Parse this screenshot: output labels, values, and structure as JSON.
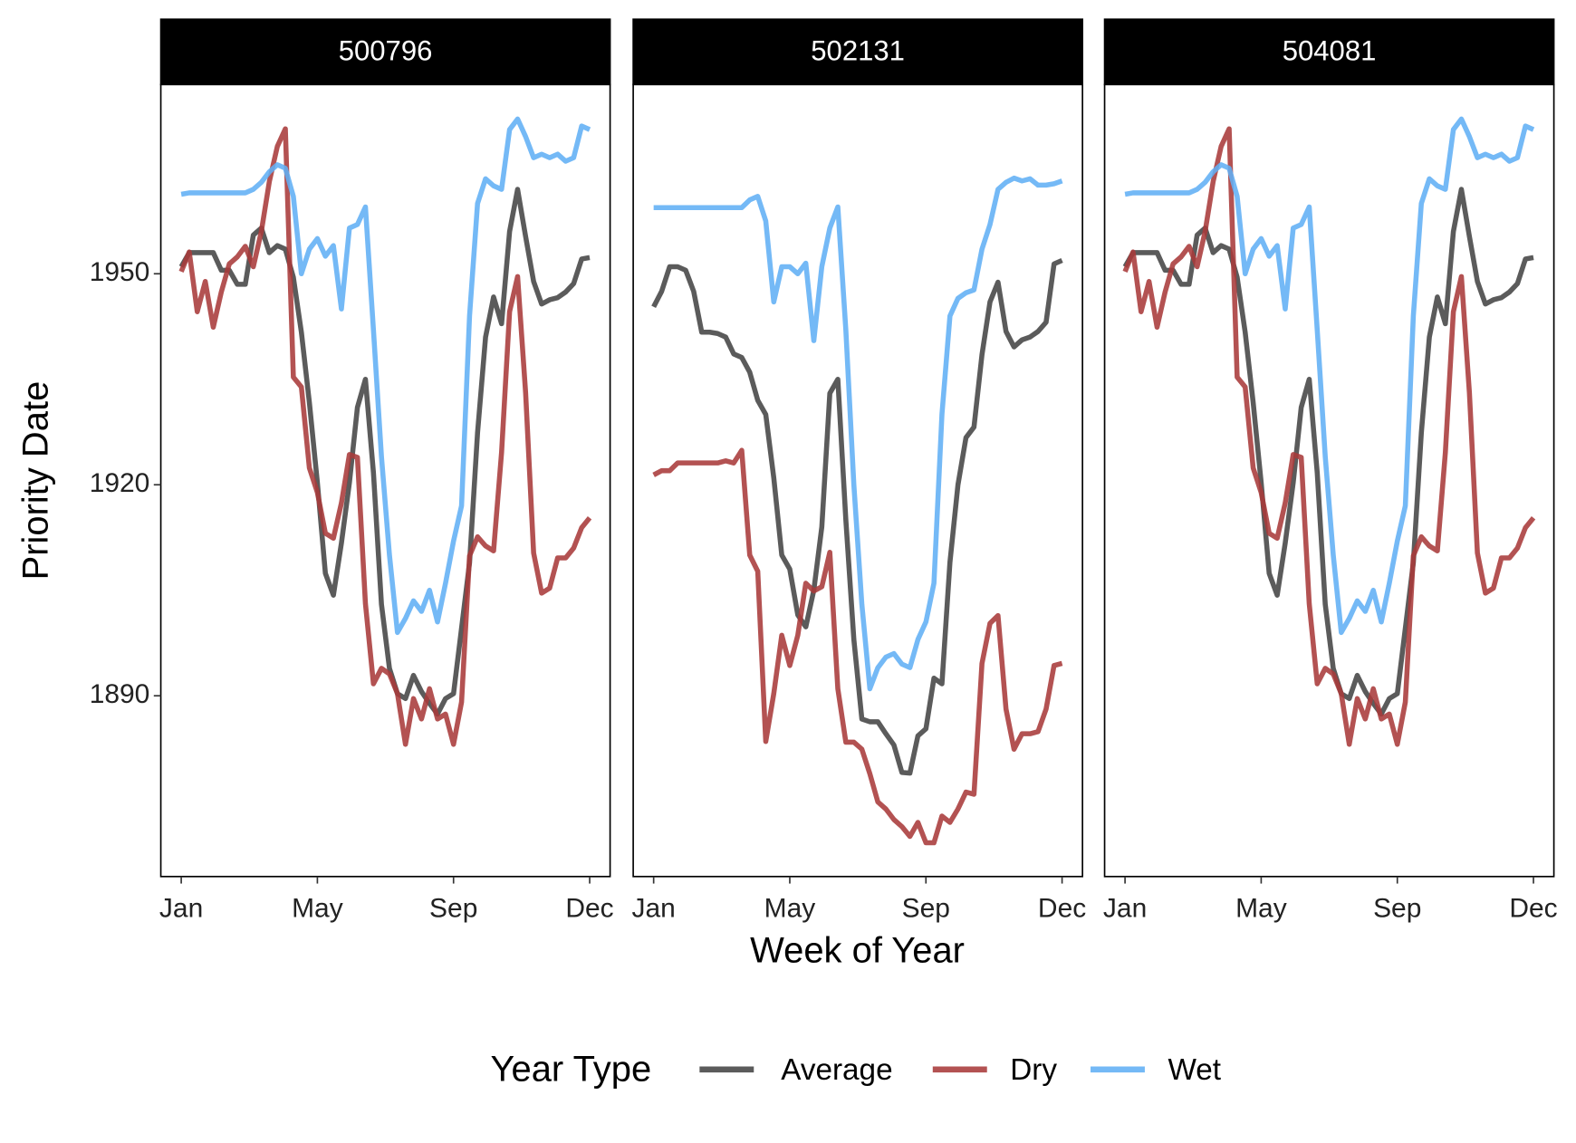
{
  "chart_data": [
    {
      "type": "line",
      "title": "500796",
      "x": [
        1,
        2,
        3,
        4,
        5,
        6,
        7,
        8,
        9,
        10,
        11,
        12,
        13,
        14,
        15,
        16,
        17,
        18,
        19,
        20,
        21,
        22,
        23,
        24,
        25,
        26,
        27,
        28,
        29,
        30,
        31,
        32,
        33,
        34,
        35,
        36,
        37,
        38,
        39,
        40,
        41,
        42,
        43,
        44,
        45,
        46,
        47,
        48,
        49,
        50,
        51,
        52
      ],
      "series": [
        {
          "name": "Average",
          "color": "#444444",
          "values": [
            1951,
            1953,
            1953,
            1953,
            1953,
            1950.5,
            1950.5,
            1948.5,
            1948.5,
            1955.5,
            1956.5,
            1953,
            1954,
            1953.5,
            1949.5,
            1941.7,
            1931.7,
            1920.3,
            1907.4,
            1904.3,
            1911.7,
            1920.3,
            1931,
            1935,
            1921.7,
            1903,
            1893.9,
            1890.3,
            1889.6,
            1892.9,
            1890.6,
            1888.9,
            1887.4,
            1889.6,
            1890.3,
            1899.6,
            1908.9,
            1927.4,
            1941,
            1946.7,
            1942.9,
            1956,
            1962,
            1955.3,
            1948.9,
            1945.7,
            1946.3,
            1946.6,
            1947.4,
            1948.6,
            1952.1,
            1952.3
          ]
        },
        {
          "name": "Dry",
          "color": "#a83a3a",
          "values": [
            1950.3,
            1953.1,
            1944.6,
            1948.9,
            1942.4,
            1947.4,
            1951.4,
            1952.4,
            1953.9,
            1951,
            1956,
            1963.1,
            1968.1,
            1970.6,
            1935.3,
            1933.9,
            1922.4,
            1918.9,
            1913.1,
            1912.4,
            1917.4,
            1924.3,
            1923.9,
            1903.1,
            1891.7,
            1893.9,
            1893.1,
            1890.3,
            1883.1,
            1889.6,
            1886.7,
            1891,
            1886.7,
            1887.4,
            1883.1,
            1889.1,
            1909.9,
            1912.6,
            1911.3,
            1910.6,
            1924.6,
            1944.6,
            1949.6,
            1933.1,
            1910.3,
            1904.6,
            1905.3,
            1909.6,
            1909.6,
            1911,
            1913.9,
            1915.3
          ]
        },
        {
          "name": "Wet",
          "color": "#61aff5",
          "values": [
            1961.3,
            1961.5,
            1961.5,
            1961.5,
            1961.5,
            1961.5,
            1961.5,
            1961.5,
            1961.5,
            1962,
            1963,
            1964.5,
            1965.5,
            1965,
            1961,
            1950,
            1953.5,
            1955,
            1952.5,
            1954,
            1945,
            1956.5,
            1957,
            1959.5,
            1942,
            1924,
            1910,
            1899,
            1901,
            1903.5,
            1902,
            1905,
            1900.5,
            1906,
            1912,
            1917,
            1944,
            1960,
            1963.5,
            1962.5,
            1962,
            1970.5,
            1972,
            1969.5,
            1966.5,
            1967,
            1966.5,
            1967,
            1966,
            1966.5,
            1971,
            1970.5
          ]
        }
      ],
      "xlim": [
        -1.55,
        54.55
      ],
      "ylim": [
        1864.3,
        1976.9
      ],
      "xticks": [
        {
          "value": 1,
          "label": "Jan"
        },
        {
          "value": 18,
          "label": "May"
        },
        {
          "value": 35,
          "label": "Sep"
        },
        {
          "value": 52,
          "label": "Dec"
        }
      ],
      "yticks": [
        1890,
        1920,
        1950
      ],
      "grid": false
    },
    {
      "type": "line",
      "title": "502131",
      "x": [
        1,
        2,
        3,
        4,
        5,
        6,
        7,
        8,
        9,
        10,
        11,
        12,
        13,
        14,
        15,
        16,
        17,
        18,
        19,
        20,
        21,
        22,
        23,
        24,
        25,
        26,
        27,
        28,
        29,
        30,
        31,
        32,
        33,
        34,
        35,
        36,
        37,
        38,
        39,
        40,
        41,
        42,
        43,
        44,
        45,
        46,
        47,
        48,
        49,
        50,
        51,
        52
      ],
      "series": [
        {
          "name": "Average",
          "color": "#444444",
          "values": [
            1945.3,
            1947.5,
            1951,
            1951,
            1950.5,
            1947.5,
            1941.7,
            1941.7,
            1941.5,
            1941,
            1938.6,
            1938.1,
            1936,
            1932,
            1930,
            1921,
            1910,
            1908,
            1901.5,
            1899.8,
            1905,
            1914,
            1933,
            1935,
            1915,
            1898,
            1886.7,
            1886.3,
            1886.3,
            1884.6,
            1883,
            1879.1,
            1879,
            1884.3,
            1885.3,
            1892.5,
            1891.7,
            1909,
            1920,
            1926.7,
            1928.2,
            1938.5,
            1946,
            1948.8,
            1941.8,
            1939.6,
            1940.6,
            1941,
            1941.8,
            1943.1,
            1951.4,
            1951.9
          ]
        },
        {
          "name": "Dry",
          "color": "#a83a3a",
          "values": [
            1921.4,
            1922,
            1922,
            1923.1,
            1923.1,
            1923.1,
            1923.1,
            1923.1,
            1923.1,
            1923.4,
            1923.1,
            1924.9,
            1910,
            1907.7,
            1883.5,
            1890.3,
            1898.6,
            1894.3,
            1898.6,
            1906,
            1904.9,
            1905.5,
            1910.4,
            1891,
            1883.4,
            1883.4,
            1882.4,
            1878.9,
            1874.9,
            1873.9,
            1872.4,
            1871.4,
            1870,
            1872,
            1869.1,
            1869.1,
            1872.9,
            1872,
            1873.9,
            1876.3,
            1876,
            1894.6,
            1900.3,
            1901.4,
            1888.1,
            1882.4,
            1884.6,
            1884.6,
            1884.9,
            1888.1,
            1894.3,
            1894.6
          ]
        },
        {
          "name": "Wet",
          "color": "#61aff5",
          "values": [
            1959.4,
            1959.4,
            1959.4,
            1959.4,
            1959.4,
            1959.4,
            1959.4,
            1959.4,
            1959.4,
            1959.4,
            1959.4,
            1959.4,
            1960.5,
            1961,
            1957.5,
            1946,
            1951,
            1951,
            1950,
            1951.5,
            1940.5,
            1951,
            1956.5,
            1959.5,
            1942,
            1920,
            1903,
            1891,
            1894,
            1895.5,
            1896,
            1894.5,
            1894,
            1898,
            1900.5,
            1906,
            1930,
            1944,
            1946.5,
            1947.3,
            1947.7,
            1953.5,
            1957,
            1962,
            1963,
            1963.6,
            1963.2,
            1963.5,
            1962.6,
            1962.6,
            1962.8,
            1963.2
          ]
        }
      ],
      "xlim": [
        -1.55,
        54.55
      ],
      "ylim": [
        1864.3,
        1976.9
      ],
      "xticks": [
        {
          "value": 1,
          "label": "Jan"
        },
        {
          "value": 18,
          "label": "May"
        },
        {
          "value": 35,
          "label": "Sep"
        },
        {
          "value": 52,
          "label": "Dec"
        }
      ],
      "grid": false
    },
    {
      "type": "line",
      "title": "504081",
      "x": [
        1,
        2,
        3,
        4,
        5,
        6,
        7,
        8,
        9,
        10,
        11,
        12,
        13,
        14,
        15,
        16,
        17,
        18,
        19,
        20,
        21,
        22,
        23,
        24,
        25,
        26,
        27,
        28,
        29,
        30,
        31,
        32,
        33,
        34,
        35,
        36,
        37,
        38,
        39,
        40,
        41,
        42,
        43,
        44,
        45,
        46,
        47,
        48,
        49,
        50,
        51,
        52
      ],
      "series": [
        {
          "name": "Average",
          "color": "#444444",
          "values": [
            1951,
            1953,
            1953,
            1953,
            1953,
            1950.5,
            1950.5,
            1948.5,
            1948.5,
            1955.5,
            1956.5,
            1953,
            1954,
            1953.5,
            1949.5,
            1941.7,
            1931.7,
            1920.3,
            1907.4,
            1904.3,
            1911.7,
            1920.3,
            1931,
            1935,
            1921.7,
            1903,
            1893.9,
            1890.3,
            1889.6,
            1892.9,
            1890.6,
            1888.9,
            1887.4,
            1889.6,
            1890.3,
            1899.6,
            1908.9,
            1927.4,
            1941,
            1946.7,
            1942.9,
            1956,
            1962,
            1955.3,
            1948.9,
            1945.7,
            1946.3,
            1946.6,
            1947.4,
            1948.6,
            1952.1,
            1952.3
          ]
        },
        {
          "name": "Dry",
          "color": "#a83a3a",
          "values": [
            1950.3,
            1953.1,
            1944.6,
            1948.9,
            1942.4,
            1947.4,
            1951.4,
            1952.4,
            1953.9,
            1951,
            1956,
            1963.1,
            1968.1,
            1970.6,
            1935.3,
            1933.9,
            1922.4,
            1918.9,
            1913.1,
            1912.4,
            1917.4,
            1924.3,
            1923.9,
            1903.1,
            1891.7,
            1893.9,
            1893.1,
            1890.3,
            1883.1,
            1889.6,
            1886.7,
            1891,
            1886.7,
            1887.4,
            1883.1,
            1889.1,
            1909.9,
            1912.6,
            1911.3,
            1910.6,
            1924.6,
            1944.6,
            1949.6,
            1933.1,
            1910.3,
            1904.6,
            1905.3,
            1909.6,
            1909.6,
            1911,
            1913.9,
            1915.3
          ]
        },
        {
          "name": "Wet",
          "color": "#61aff5",
          "values": [
            1961.3,
            1961.5,
            1961.5,
            1961.5,
            1961.5,
            1961.5,
            1961.5,
            1961.5,
            1961.5,
            1962,
            1963,
            1964.5,
            1965.5,
            1965,
            1961,
            1950,
            1953.5,
            1955,
            1952.5,
            1954,
            1945,
            1956.5,
            1957,
            1959.5,
            1942,
            1924,
            1910,
            1899,
            1901,
            1903.5,
            1902,
            1905,
            1900.5,
            1906,
            1912,
            1917,
            1944,
            1960,
            1963.5,
            1962.5,
            1962,
            1970.5,
            1972,
            1969.5,
            1966.5,
            1967,
            1966.5,
            1967,
            1966,
            1966.5,
            1971,
            1970.5
          ]
        }
      ],
      "xlim": [
        -1.55,
        54.55
      ],
      "ylim": [
        1864.3,
        1976.9
      ],
      "xticks": [
        {
          "value": 1,
          "label": "Jan"
        },
        {
          "value": 18,
          "label": "May"
        },
        {
          "value": 35,
          "label": "Sep"
        },
        {
          "value": 52,
          "label": "Dec"
        }
      ],
      "grid": false
    }
  ],
  "axis_labels": {
    "x": "Week of Year",
    "y": "Priority Date"
  },
  "legend": {
    "title": "Year Type",
    "position": "bottom"
  }
}
